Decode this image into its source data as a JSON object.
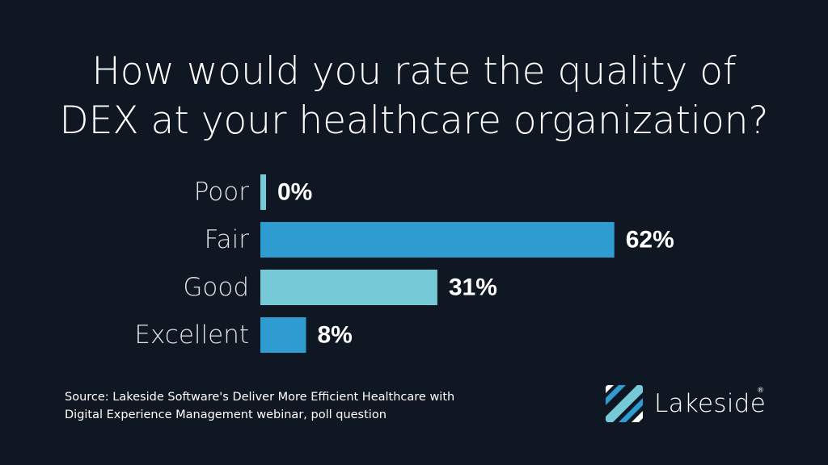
{
  "title": {
    "line1": "How would you rate the quality of",
    "line2": "DEX at your healthcare organization?"
  },
  "chart_data": {
    "type": "bar",
    "orientation": "horizontal",
    "title": "How would you rate the quality of DEX at your healthcare organization?",
    "categories": [
      "Poor",
      "Fair",
      "Good",
      "Excellent"
    ],
    "values": [
      0,
      62,
      31,
      8
    ],
    "value_labels": [
      "0%",
      "62%",
      "31%",
      "8%"
    ],
    "unit": "%",
    "bar_colors": [
      "#76c9d6",
      "#2e9cd0",
      "#76c9d6",
      "#2e9cd0"
    ],
    "grid": false,
    "legend": "none"
  },
  "source": {
    "line1": "Source: Lakeside Software's Deliver More Efficient Healthcare with",
    "line2": "Digital Experience Management webinar, poll question"
  },
  "logo": {
    "wordmark": "Lakeside",
    "registered": "®",
    "icon": "lakeside-logo-icon"
  },
  "colors": {
    "background": "#0f1722",
    "text": "#ffffff",
    "category_label": "#dfe3e8",
    "bar_dark": "#2e9cd0",
    "bar_light": "#76c9d6"
  }
}
